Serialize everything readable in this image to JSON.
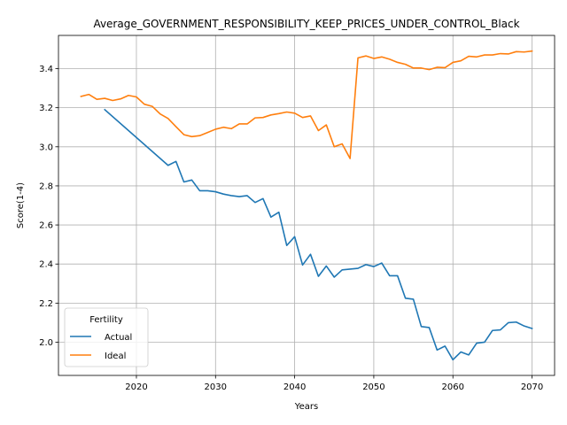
{
  "chart_data": {
    "type": "line",
    "title": "Average_GOVERNMENT_RESPONSIBILITY_KEEP_PRICES_UNDER_CONTROL_Black",
    "xlabel": "Years",
    "ylabel": "Score(1-4)",
    "xlim": [
      2010.15,
      2072.85
    ],
    "ylim": [
      1.83,
      3.57
    ],
    "xticks": [
      2020,
      2030,
      2040,
      2050,
      2060,
      2070
    ],
    "yticks": [
      2.0,
      2.2,
      2.4,
      2.6,
      2.8,
      3.0,
      3.2,
      3.4
    ],
    "ytick_labels": [
      "2.0",
      "2.2",
      "2.4",
      "2.6",
      "2.8",
      "3.0",
      "3.2",
      "3.4"
    ],
    "grid": true,
    "legend": {
      "title": "Fertility",
      "placement": "lower-left"
    },
    "series": [
      {
        "name": "Actual",
        "color": "#1f77b4",
        "x": [
          2016,
          2024,
          2025,
          2026,
          2027,
          2028,
          2029,
          2030,
          2031,
          2032,
          2033,
          2034,
          2035,
          2036,
          2037,
          2038,
          2039,
          2040,
          2041,
          2042,
          2043,
          2044,
          2045,
          2046,
          2047,
          2048,
          2049,
          2050,
          2051,
          2052,
          2053,
          2054,
          2055,
          2056,
          2057,
          2058,
          2059,
          2060,
          2061,
          2062,
          2063,
          2064,
          2065,
          2066,
          2067,
          2068,
          2069,
          2070
        ],
        "y": [
          3.19,
          2.905,
          2.925,
          2.82,
          2.83,
          2.775,
          2.775,
          2.77,
          2.758,
          2.75,
          2.745,
          2.75,
          2.715,
          2.735,
          2.64,
          2.665,
          2.495,
          2.54,
          2.395,
          2.45,
          2.337,
          2.39,
          2.333,
          2.37,
          2.374,
          2.378,
          2.397,
          2.387,
          2.405,
          2.34,
          2.34,
          2.225,
          2.22,
          2.08,
          2.075,
          1.96,
          1.98,
          1.91,
          1.95,
          1.935,
          1.995,
          2.0,
          2.06,
          2.063,
          2.1,
          2.103,
          2.083,
          2.07
        ]
      },
      {
        "name": "Ideal",
        "color": "#ff7f0e",
        "x": [
          2013,
          2014,
          2015,
          2016,
          2017,
          2018,
          2019,
          2020,
          2021,
          2022,
          2023,
          2024,
          2025,
          2026,
          2027,
          2028,
          2029,
          2030,
          2031,
          2032,
          2033,
          2034,
          2035,
          2036,
          2037,
          2038,
          2039,
          2040,
          2041,
          2042,
          2043,
          2044,
          2045,
          2046,
          2047,
          2048,
          2049,
          2050,
          2051,
          2052,
          2053,
          2054,
          2055,
          2056,
          2057,
          2058,
          2059,
          2060,
          2061,
          2062,
          2063,
          2064,
          2065,
          2066,
          2067,
          2068,
          2069,
          2070
        ],
        "y": [
          3.258,
          3.268,
          3.243,
          3.248,
          3.237,
          3.245,
          3.263,
          3.255,
          3.218,
          3.207,
          3.168,
          3.145,
          3.103,
          3.062,
          3.052,
          3.057,
          3.073,
          3.09,
          3.1,
          3.093,
          3.117,
          3.117,
          3.148,
          3.15,
          3.163,
          3.17,
          3.178,
          3.172,
          3.15,
          3.158,
          3.083,
          3.112,
          3.0,
          3.015,
          2.94,
          3.455,
          3.465,
          3.452,
          3.46,
          3.448,
          3.432,
          3.422,
          3.403,
          3.403,
          3.395,
          3.407,
          3.405,
          3.432,
          3.44,
          3.463,
          3.46,
          3.47,
          3.47,
          3.477,
          3.475,
          3.487,
          3.485,
          3.49
        ]
      }
    ]
  }
}
